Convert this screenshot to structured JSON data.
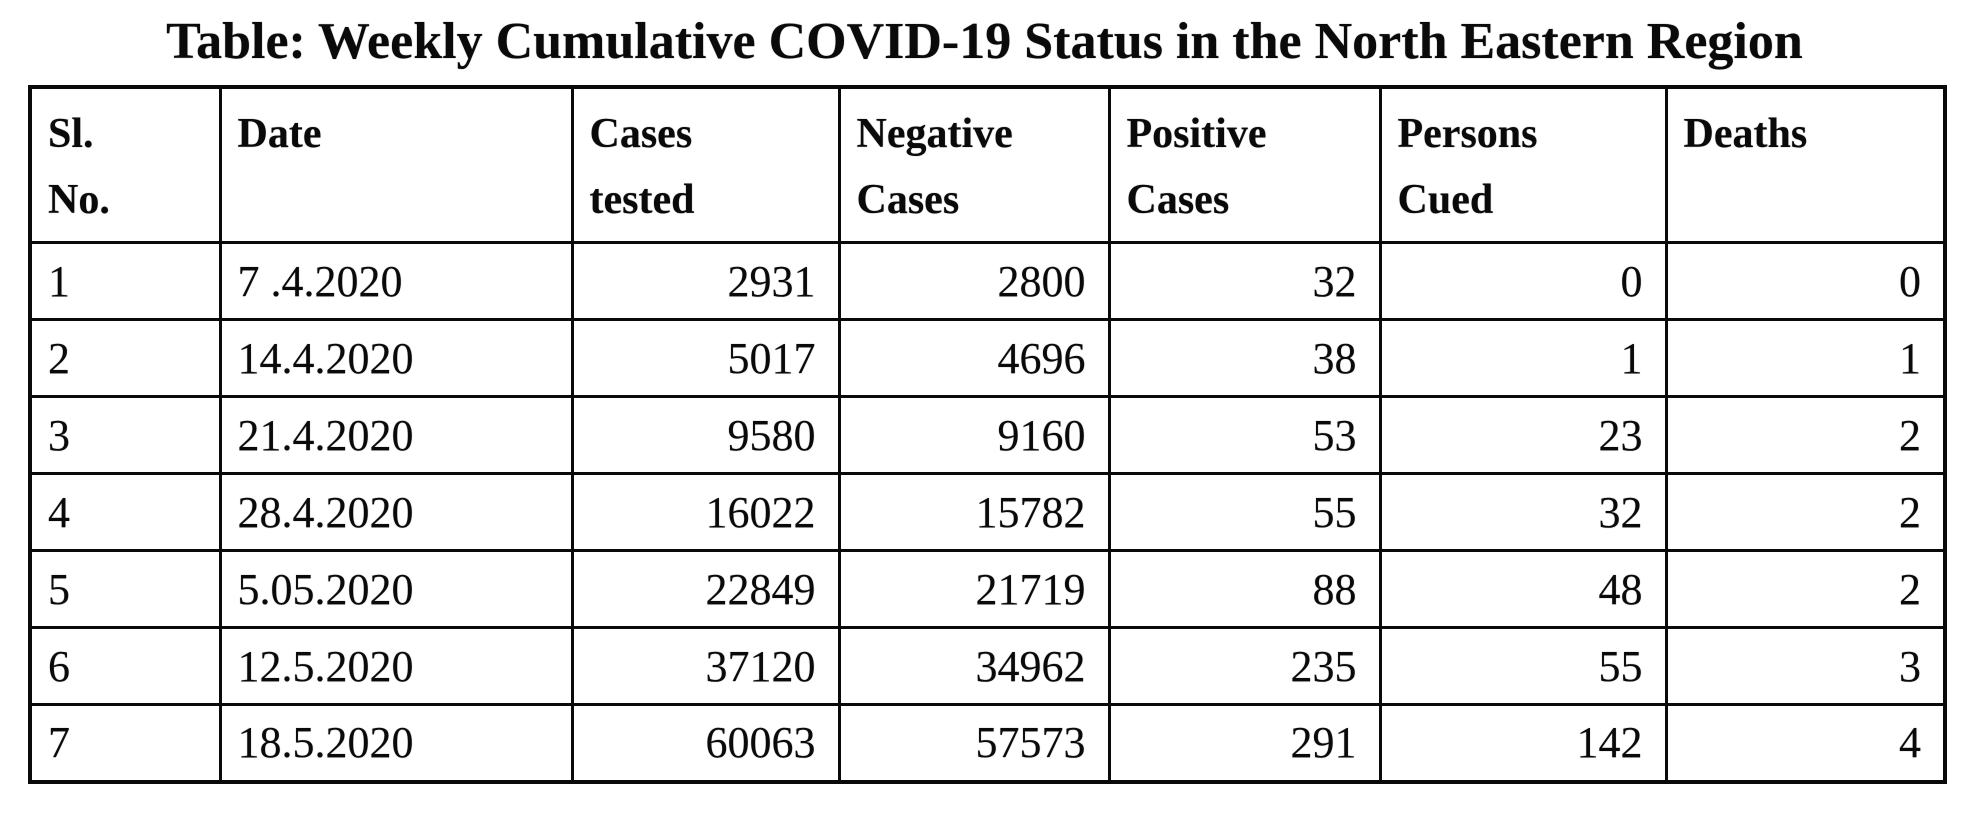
{
  "title": "Table: Weekly Cumulative COVID-19 Status in the North Eastern Region",
  "table": {
    "headers": [
      {
        "line1": "Sl.",
        "line2": "No."
      },
      {
        "line1": "Date",
        "line2": ""
      },
      {
        "line1": "Cases",
        "line2": "tested"
      },
      {
        "line1": "Negative",
        "line2": "Cases"
      },
      {
        "line1": "Positive",
        "line2": "Cases"
      },
      {
        "line1": "Persons",
        "line2": "Cued"
      },
      {
        "line1": "Deaths",
        "line2": ""
      }
    ],
    "rows": [
      [
        "1",
        "7 .4.2020",
        "2931",
        "2800",
        "32",
        "0",
        "0"
      ],
      [
        "2",
        "14.4.2020",
        "5017",
        "4696",
        "38",
        "1",
        "1"
      ],
      [
        "3",
        "21.4.2020",
        "9580",
        "9160",
        "53",
        "23",
        "2"
      ],
      [
        "4",
        "28.4.2020",
        "16022",
        "15782",
        "55",
        "32",
        "2"
      ],
      [
        "5",
        "5.05.2020",
        "22849",
        "21719",
        "88",
        "48",
        "2"
      ],
      [
        "6",
        "12.5.2020",
        "37120",
        "34962",
        "235",
        "55",
        "3"
      ],
      [
        "7",
        "18.5.2020",
        "60063",
        "57573",
        "291",
        "142",
        "4"
      ]
    ]
  },
  "colors": {
    "text": "#0a0a0a",
    "background": "#ffffff",
    "border": "#0a0a0a"
  }
}
